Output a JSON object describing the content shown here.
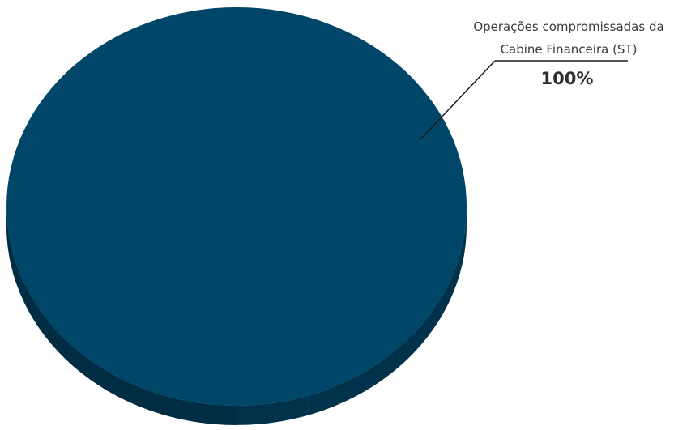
{
  "chart_data": {
    "type": "pie",
    "style": "3d",
    "slices": [
      {
        "label_lines": [
          "Operações compromissadas da",
          "Cabine Financeira (ST)"
        ],
        "value": 100,
        "value_label": "100%",
        "color": "#004669",
        "side_color": "#00324b",
        "side_dark_color": "#002a40"
      }
    ],
    "legend": "none",
    "label_placement": "callout top-right"
  }
}
